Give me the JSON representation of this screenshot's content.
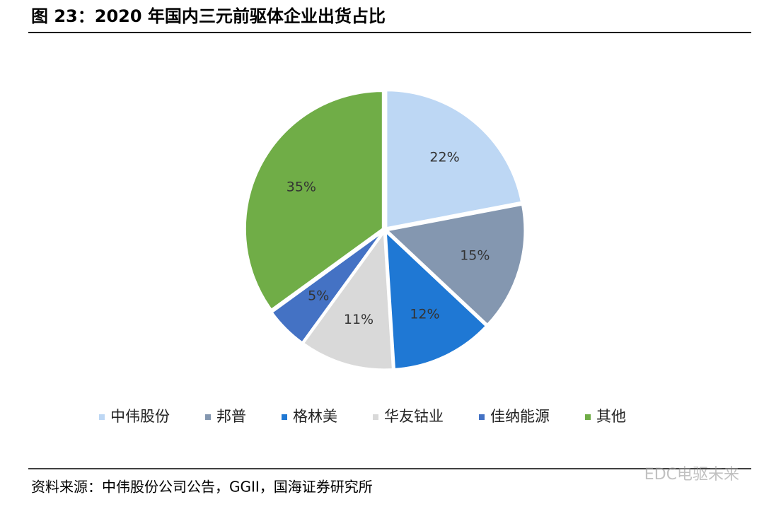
{
  "chart_data": {
    "type": "pie",
    "title": "图 23：2020 年国内三元前驱体企业出货占比",
    "categories": [
      "中伟股份",
      "邦普",
      "格林美",
      "华友钴业",
      "佳纳能源",
      "其他"
    ],
    "values": [
      22,
      15,
      12,
      11,
      5,
      35
    ],
    "value_labels": [
      "22%",
      "15%",
      "12%",
      "11%",
      "5%",
      "35%"
    ],
    "colors": [
      "#BDD7F4",
      "#8497B0",
      "#1F78D4",
      "#D9D9D9",
      "#4472C4",
      "#70AD47"
    ],
    "legend": "bottom",
    "source": "资料来源：中伟股份公司公告，GGII，国海证券研究所",
    "watermark": "EDC电驱未来"
  }
}
